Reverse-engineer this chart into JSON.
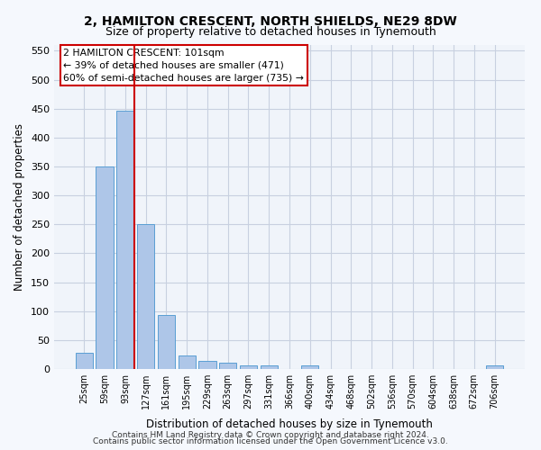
{
  "title": "2, HAMILTON CRESCENT, NORTH SHIELDS, NE29 8DW",
  "subtitle": "Size of property relative to detached houses in Tynemouth",
  "xlabel": "Distribution of detached houses by size in Tynemouth",
  "ylabel": "Number of detached properties",
  "bar_labels": [
    "25sqm",
    "59sqm",
    "93sqm",
    "127sqm",
    "161sqm",
    "195sqm",
    "229sqm",
    "263sqm",
    "297sqm",
    "331sqm",
    "366sqm",
    "400sqm",
    "434sqm",
    "468sqm",
    "502sqm",
    "536sqm",
    "570sqm",
    "604sqm",
    "638sqm",
    "672sqm",
    "706sqm"
  ],
  "bar_values": [
    28,
    350,
    447,
    250,
    93,
    24,
    14,
    11,
    6,
    6,
    0,
    6,
    0,
    0,
    0,
    0,
    0,
    0,
    0,
    0,
    6
  ],
  "bar_color": "#aec6e8",
  "bar_edge_color": "#5a9fd4",
  "vline_x": 2,
  "vline_color": "#cc0000",
  "annotation_text": "2 HAMILTON CRESCENT: 101sqm\n← 39% of detached houses are smaller (471)\n60% of semi-detached houses are larger (735) →",
  "annotation_box_color": "#ffffff",
  "annotation_box_edge": "#cc0000",
  "ylim": [
    0,
    560
  ],
  "yticks": [
    0,
    50,
    100,
    150,
    200,
    250,
    300,
    350,
    400,
    450,
    500,
    550
  ],
  "footer_line1": "Contains HM Land Registry data © Crown copyright and database right 2024.",
  "footer_line2": "Contains public sector information licensed under the Open Government Licence v3.0.",
  "bg_color": "#f0f4fa",
  "plot_bg_color": "#f0f4fa"
}
